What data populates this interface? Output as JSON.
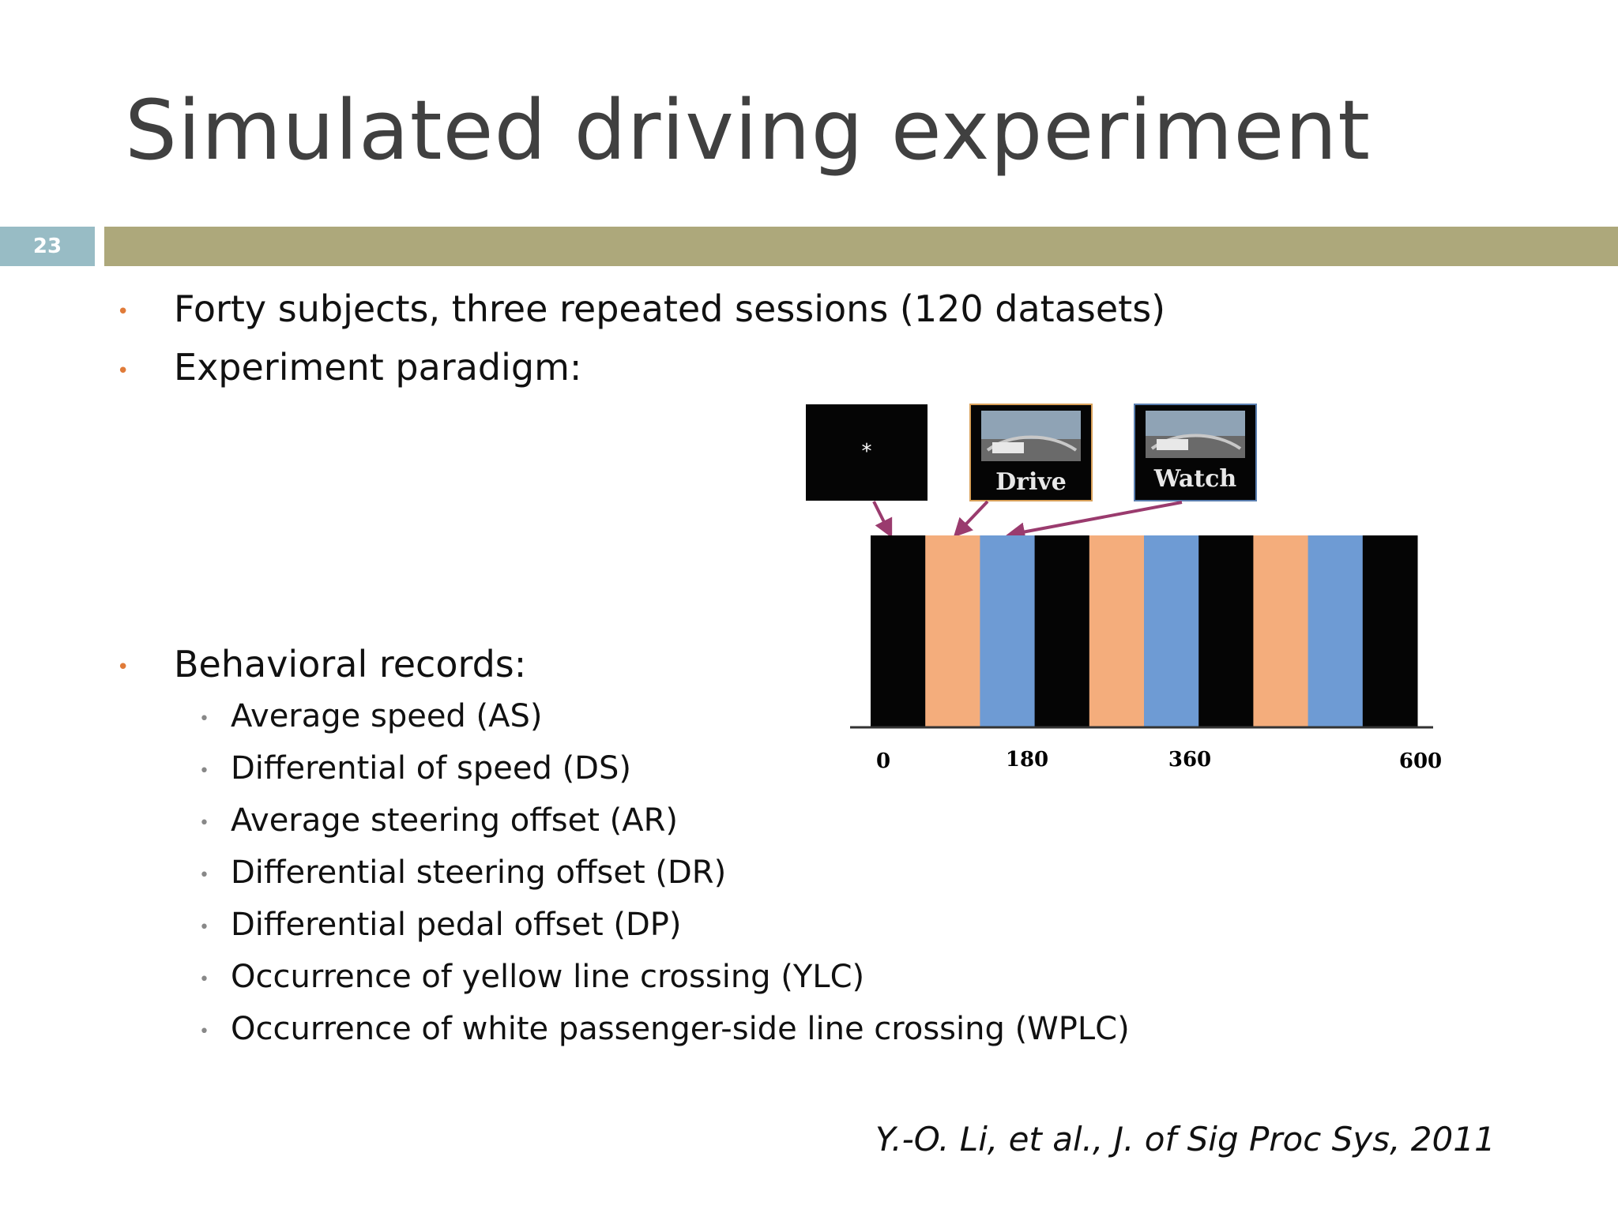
{
  "slide": {
    "title": "Simulated driving experiment",
    "slide_number": "23",
    "bullets": [
      "Forty subjects, three repeated sessions (120 datasets)",
      "Experiment paradigm:",
      "Behavioral records:"
    ],
    "behavioral_records": [
      "Average speed (AS)",
      "Differential of speed (DS)",
      "Average steering offset (AR)",
      "Differential steering offset (DR)",
      "Differential pedal offset (DP)",
      "Occurrence of yellow line crossing (YLC)",
      "Occurrence of white passenger-side line crossing (WPLC)"
    ],
    "citation": "Y.-O. Li, et al., J. of Sig Proc Sys, 2011"
  },
  "figure": {
    "fixation_symbol": "*",
    "drive_label": "Drive",
    "watch_label": "Watch",
    "block_sequence": [
      "fixation",
      "drive",
      "watch",
      "fixation",
      "drive",
      "watch",
      "fixation",
      "drive",
      "watch",
      "fixation"
    ],
    "tick_labels": [
      "0",
      "180",
      "360",
      "600"
    ],
    "colors": {
      "fixation": "#050505",
      "drive": "#f4ad7c",
      "watch": "#6e9bd4",
      "arrow": "#9a3b6e"
    }
  },
  "colors": {
    "accent_bar": "#ada87b",
    "number_box": "#98bcc5",
    "bullet": "#e07b39",
    "title": "#404040"
  }
}
